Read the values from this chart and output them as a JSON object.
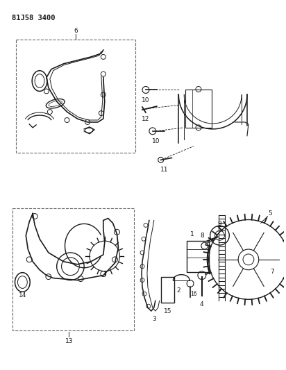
{
  "title_code": "81J58 3400",
  "bg": "#ffffff",
  "lc": "#1a1a1a",
  "fig_width": 4.12,
  "fig_height": 5.33,
  "dpi": 100
}
